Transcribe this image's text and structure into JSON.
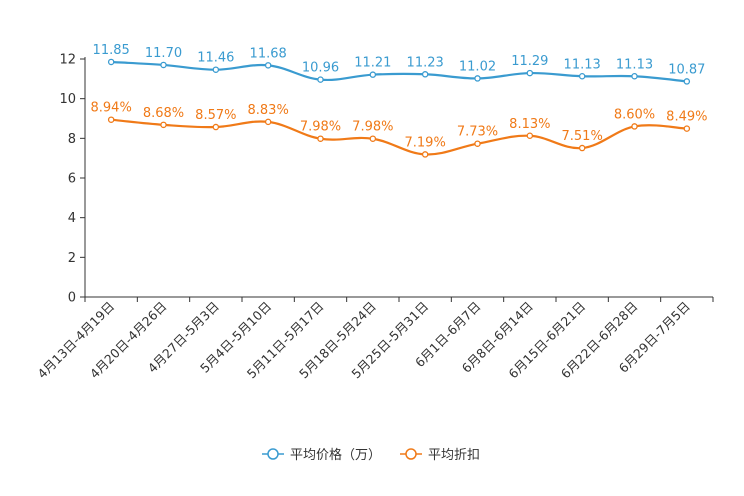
{
  "chart_data": {
    "type": "line",
    "categories": [
      "4月13日-4月19日",
      "4月20日-4月26日",
      "4月27日-5月3日",
      "5月4日-5月10日",
      "5月11日-5月17日",
      "5月18日-5月24日",
      "5月25日-5月31日",
      "6月1日-6月7日",
      "6月8日-6月14日",
      "6月15日-6月21日",
      "6月22日-6月28日",
      "6月29日-7月5日"
    ],
    "series": [
      {
        "name": "平均价格（万）",
        "color": "#3a9bd0",
        "values": [
          11.85,
          11.7,
          11.46,
          11.68,
          10.96,
          11.21,
          11.23,
          11.02,
          11.29,
          11.13,
          11.13,
          10.87
        ],
        "labels": [
          "11.85",
          "11.70",
          "11.46",
          "11.68",
          "10.96",
          "11.21",
          "11.23",
          "11.02",
          "11.29",
          "11.13",
          "11.13",
          "10.87"
        ]
      },
      {
        "name": "平均折扣",
        "color": "#f07a18",
        "values": [
          8.94,
          8.68,
          8.57,
          8.83,
          7.98,
          7.98,
          7.19,
          7.73,
          8.13,
          7.51,
          8.6,
          8.49
        ],
        "labels": [
          "8.94%",
          "8.68%",
          "8.57%",
          "8.83%",
          "7.98%",
          "7.98%",
          "7.19%",
          "7.73%",
          "8.13%",
          "7.51%",
          "8.60%",
          "8.49%"
        ]
      }
    ],
    "yticks": [
      "0",
      "2",
      "4",
      "6",
      "8",
      "10",
      "12"
    ],
    "ylim": [
      0,
      12
    ],
    "grid": false,
    "legend": "bottom-center"
  }
}
